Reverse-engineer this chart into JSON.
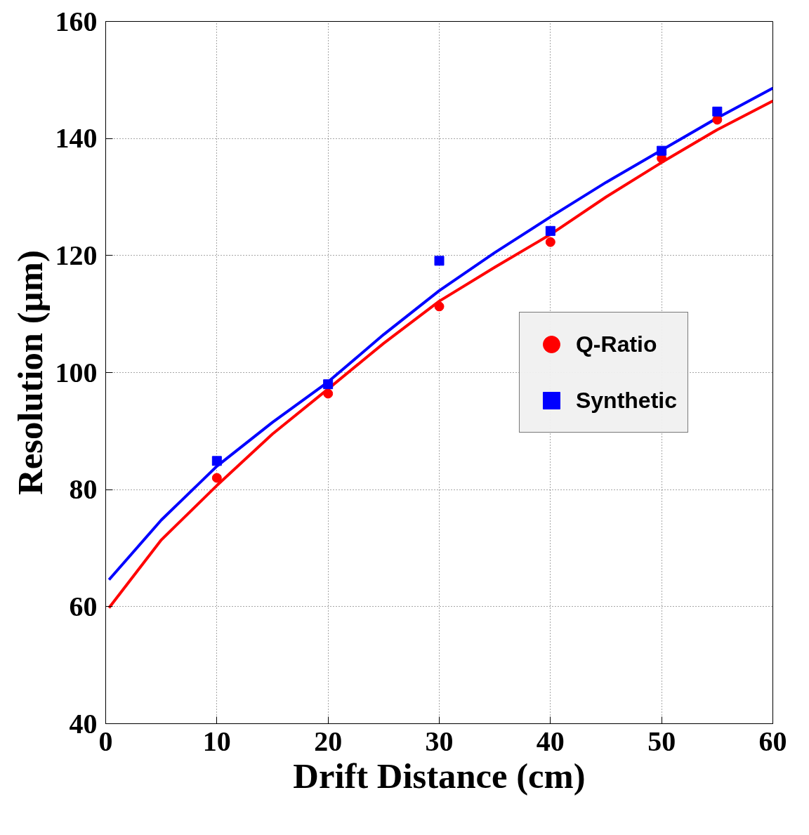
{
  "chart_data": {
    "type": "line",
    "xlabel": "Drift Distance (cm)",
    "ylabel": "Resolution (µm)",
    "xlim": [
      0,
      60
    ],
    "ylim": [
      40,
      160
    ],
    "xticks": [
      0,
      10,
      20,
      30,
      40,
      50,
      60
    ],
    "yticks": [
      40,
      60,
      80,
      100,
      120,
      140,
      160
    ],
    "grid": true,
    "legend": "right",
    "line_style": "solid",
    "series": [
      {
        "marker": "none",
        "color": "#ff0000",
        "x": [
          0.3,
          5,
          10,
          15,
          20,
          25,
          30,
          35,
          40,
          45,
          50,
          55,
          60
        ],
        "values": [
          59.8,
          71.4,
          80.7,
          89.5,
          97.2,
          105,
          112.2,
          118,
          123.6,
          130,
          135.9,
          141.5,
          146.4
        ]
      },
      {
        "marker": "none",
        "color": "#0000ff",
        "x": [
          0.3,
          5,
          10,
          15,
          20,
          25,
          30,
          35,
          40,
          45,
          50,
          55,
          60
        ],
        "values": [
          64.6,
          74.8,
          84,
          91.5,
          98.4,
          106.5,
          114,
          120.5,
          126.6,
          132.5,
          138,
          143.5,
          148.6
        ]
      },
      {
        "type": "scatter",
        "marker": "circle",
        "name": "Q-Ratio",
        "color": "#ff0000",
        "x": [
          10,
          20,
          30,
          40,
          50,
          55
        ],
        "values": [
          82,
          96.4,
          111.3,
          122.3,
          136.6,
          143.2
        ]
      },
      {
        "type": "scatter",
        "marker": "square",
        "name": "Synthetic",
        "color": "#0000ff",
        "x": [
          10,
          20,
          30,
          40,
          50,
          55
        ],
        "values": [
          84.9,
          98,
          119.1,
          124.2,
          137.9,
          144.6
        ]
      }
    ]
  }
}
